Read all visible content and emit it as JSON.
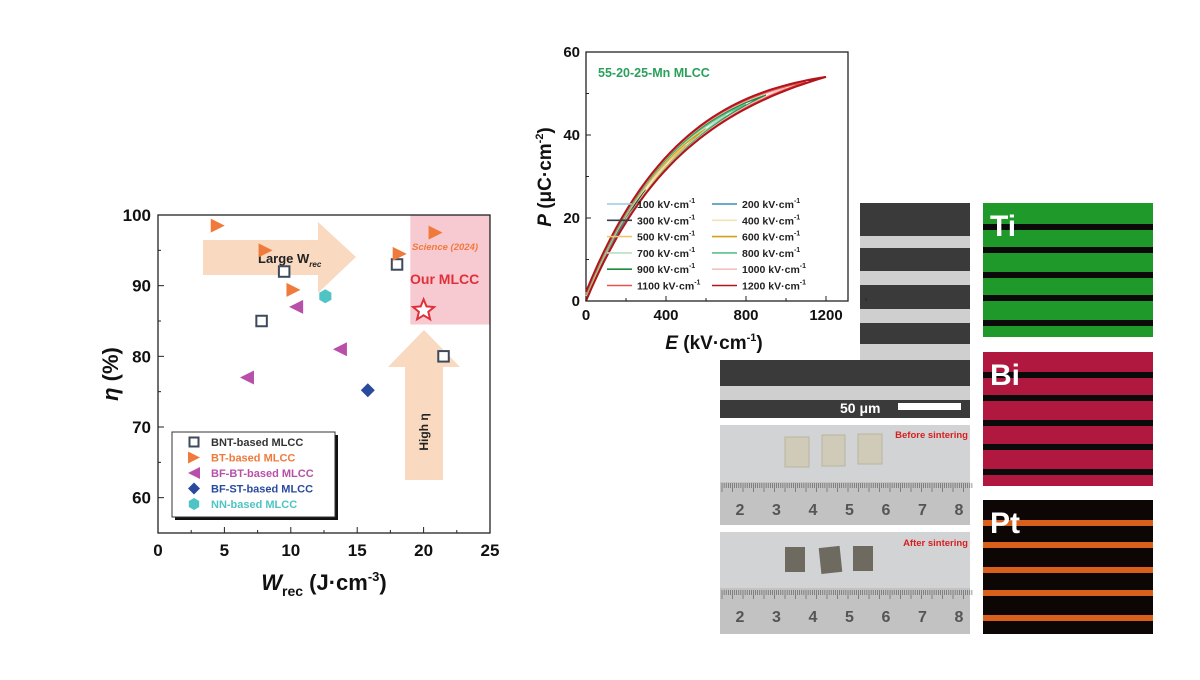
{
  "chart_data": [
    {
      "type": "scatter",
      "xlabel": {
        "main": "W",
        "sub": "rec",
        "unit": " (J·cm",
        "sup": "-3",
        "close": ")"
      },
      "ylabel": {
        "symbol": "η",
        "unit": " (%)"
      },
      "xlim": [
        0,
        25
      ],
      "ylim": [
        55,
        100
      ],
      "xticks": [
        "0",
        "5",
        "10",
        "15",
        "20",
        "25"
      ],
      "yticks": [
        "60",
        "70",
        "80",
        "90",
        "100"
      ],
      "grid": false,
      "legend_placement": "bottom-left",
      "series": [
        {
          "name": "BNT-based MLCC",
          "marker": "open-square",
          "color": "#3d4a5c",
          "points": [
            [
              7.8,
              85
            ],
            [
              9.5,
              92
            ],
            [
              18,
              93
            ],
            [
              21.5,
              80
            ]
          ]
        },
        {
          "name": "BT-based MLCC",
          "marker": "right-triangle",
          "color": "#f07a3c",
          "points": [
            [
              4.5,
              98.5
            ],
            [
              8.1,
              95
            ],
            [
              10.2,
              89.4
            ],
            [
              18.2,
              94.5
            ],
            [
              20.9,
              97.5
            ]
          ]
        },
        {
          "name": "BF-BT-based MLCC",
          "marker": "left-triangle",
          "color": "#b84fa8",
          "points": [
            [
              10.4,
              87
            ],
            [
              6.7,
              77
            ],
            [
              13.7,
              81
            ]
          ]
        },
        {
          "name": "BF-ST-based MLCC",
          "marker": "diamond",
          "color": "#2a4a9e",
          "points": [
            [
              15.8,
              75.2
            ]
          ]
        },
        {
          "name": "NN-based MLCC",
          "marker": "hexagon",
          "color": "#4fc4c4",
          "points": [
            [
              12.6,
              88.5
            ]
          ]
        }
      ],
      "highlight": {
        "label": "Our MLCC",
        "marker": "open-star",
        "color": "#e0303a",
        "point": [
          20,
          86.5
        ],
        "region_x": [
          19,
          25
        ],
        "region_y": [
          84.5,
          100
        ],
        "region_color": "#f7c9d0"
      },
      "annotations": {
        "science": "Science (2024)",
        "large_w": {
          "main": "Large W",
          "sub": "rec"
        },
        "high_eta": "High η"
      }
    },
    {
      "type": "line",
      "title": "55-20-25-Mn MLCC",
      "title_color": "#2aa05a",
      "xlabel": {
        "symbol": "E",
        "unit": " (kV·cm",
        "sup": "-1",
        "close": ")"
      },
      "ylabel": {
        "symbol": "P",
        "unit": " (μC·cm",
        "sup": "-2",
        "close": ")"
      },
      "xlim": [
        0,
        1300
      ],
      "ylim": [
        0,
        60
      ],
      "xticks": [
        "0",
        "400",
        "800",
        "1200"
      ],
      "yticks": [
        "0",
        "20",
        "40",
        "60"
      ],
      "grid": false,
      "legend_placement": "bottom-right",
      "series": [
        {
          "name": "100 kV·cm",
          "E_max": 100,
          "P_max": 10.7,
          "color": "#9ecae1"
        },
        {
          "name": "200 kV·cm",
          "E_max": 200,
          "P_max": 19.5,
          "color": "#3a8fb7"
        },
        {
          "name": "300 kV·cm",
          "E_max": 300,
          "P_max": 26.8,
          "color": "#2f3f4f"
        },
        {
          "name": "400 kV·cm",
          "E_max": 400,
          "P_max": 32.7,
          "color": "#f1e2b8"
        },
        {
          "name": "500 kV·cm",
          "E_max": 500,
          "P_max": 37.5,
          "color": "#f0c674"
        },
        {
          "name": "600 kV·cm",
          "E_max": 600,
          "P_max": 41.5,
          "color": "#d4a017"
        },
        {
          "name": "700 kV·cm",
          "E_max": 700,
          "P_max": 44.8,
          "color": "#b8e0c0"
        },
        {
          "name": "800 kV·cm",
          "E_max": 800,
          "P_max": 47.4,
          "color": "#5cc08a"
        },
        {
          "name": "900 kV·cm",
          "E_max": 900,
          "P_max": 49.6,
          "color": "#1f8a3f"
        },
        {
          "name": "1000 kV·cm",
          "E_max": 1000,
          "P_max": 51.4,
          "color": "#f4c0c0"
        },
        {
          "name": "1100 kV·cm",
          "E_max": 1100,
          "P_max": 52.8,
          "color": "#e8544a"
        },
        {
          "name": "1200 kV·cm",
          "E_max": 1200,
          "P_max": 54.0,
          "color": "#b0151d"
        }
      ],
      "legend_sup": "-1"
    }
  ],
  "images": {
    "sem": {
      "scale_bar": "50 μm"
    },
    "photo_before": {
      "label": "Before sintering",
      "ruler": [
        "2",
        "3",
        "4",
        "5",
        "6",
        "7",
        "8"
      ]
    },
    "photo_after": {
      "label": "After sintering",
      "ruler": [
        "2",
        "3",
        "4",
        "5",
        "6",
        "7",
        "8"
      ]
    },
    "eds": [
      {
        "element": "Ti",
        "color": "#1f9a2a"
      },
      {
        "element": "Bi",
        "color": "#b0183f"
      },
      {
        "element": "Pt",
        "color": "#d8601a"
      }
    ],
    "label_color": "#d81e1e"
  }
}
